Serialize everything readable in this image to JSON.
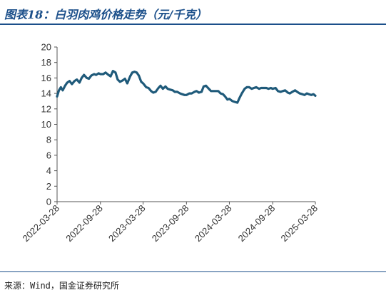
{
  "header": {
    "title": "图表18：白羽肉鸡价格走势（元/千克）"
  },
  "footer": {
    "source": "来源：Wind，国金证券研究所"
  },
  "chart_data": {
    "type": "line",
    "title": "图表18：白羽肉鸡价格走势（元/千克）",
    "xlabel": "",
    "ylabel": "",
    "ylim": [
      0,
      20
    ],
    "yticks": [
      "0",
      "2",
      "4",
      "6",
      "8",
      "10",
      "12",
      "14",
      "16",
      "18",
      "20"
    ],
    "xticks": [
      "2022-03-28",
      "2022-09-28",
      "2023-03-28",
      "2023-09-28",
      "2024-03-28",
      "2024-09-28",
      "2025-03-28"
    ],
    "xlim": [
      "2022-03-28",
      "2025-03-28"
    ],
    "grid": false,
    "legend": "none",
    "line_color": "#1f5a7a",
    "series": [
      {
        "x": [
          "2022-03-28",
          "2022-04-05",
          "2022-04-13",
          "2022-04-21",
          "2022-05-01",
          "2022-05-10",
          "2022-05-20",
          "2022-05-30",
          "2022-06-10",
          "2022-06-20",
          "2022-07-01",
          "2022-07-10",
          "2022-07-20",
          "2022-08-01",
          "2022-08-10",
          "2022-08-20",
          "2022-09-01",
          "2022-09-10",
          "2022-09-20",
          "2022-09-28",
          "2022-10-10",
          "2022-10-20",
          "2022-11-01",
          "2022-11-10",
          "2022-11-20",
          "2022-12-01",
          "2022-12-10",
          "2022-12-20",
          "2023-01-01",
          "2023-01-10",
          "2023-01-20",
          "2023-02-01",
          "2023-02-10",
          "2023-02-20",
          "2023-03-01",
          "2023-03-10",
          "2023-03-20",
          "2023-03-28",
          "2023-04-10",
          "2023-04-20",
          "2023-05-01",
          "2023-05-10",
          "2023-05-20",
          "2023-06-01",
          "2023-06-10",
          "2023-06-20",
          "2023-07-01",
          "2023-07-10",
          "2023-07-20",
          "2023-08-01",
          "2023-08-10",
          "2023-08-20",
          "2023-09-01",
          "2023-09-10",
          "2023-09-20",
          "2023-09-28",
          "2023-10-10",
          "2023-10-20",
          "2023-11-01",
          "2023-11-10",
          "2023-11-20",
          "2023-12-01",
          "2023-12-10",
          "2023-12-20",
          "2024-01-01",
          "2024-01-10",
          "2024-01-20",
          "2024-02-01",
          "2024-02-10",
          "2024-02-20",
          "2024-03-01",
          "2024-03-10",
          "2024-03-20",
          "2024-03-28",
          "2024-04-10",
          "2024-04-20",
          "2024-05-01",
          "2024-05-10",
          "2024-05-20",
          "2024-06-01",
          "2024-06-10",
          "2024-06-20",
          "2024-07-01",
          "2024-07-10",
          "2024-07-20",
          "2024-08-01",
          "2024-08-10",
          "2024-08-20",
          "2024-09-01",
          "2024-09-10",
          "2024-09-20",
          "2024-09-28",
          "2024-10-10",
          "2024-10-20",
          "2024-11-01",
          "2024-11-10",
          "2024-11-20",
          "2024-12-01",
          "2024-12-10",
          "2024-12-20",
          "2025-01-01",
          "2025-01-10",
          "2025-01-20",
          "2025-02-01",
          "2025-02-10",
          "2025-02-20",
          "2025-03-01",
          "2025-03-10",
          "2025-03-20",
          "2025-03-28"
        ],
        "values": [
          13.6,
          14.4,
          14.8,
          14.4,
          15.0,
          15.4,
          15.6,
          15.2,
          15.6,
          15.8,
          15.4,
          16.0,
          16.4,
          16.0,
          15.9,
          16.3,
          16.5,
          16.4,
          16.6,
          16.5,
          16.5,
          16.7,
          16.4,
          16.2,
          16.9,
          16.7,
          15.8,
          15.5,
          15.7,
          15.9,
          15.3,
          16.2,
          16.7,
          16.8,
          16.7,
          16.3,
          15.5,
          15.3,
          14.8,
          14.7,
          14.3,
          14.1,
          14.2,
          14.7,
          15.0,
          14.6,
          14.9,
          14.6,
          14.5,
          14.4,
          14.2,
          14.2,
          14.0,
          13.9,
          13.8,
          13.8,
          14.0,
          14.0,
          14.2,
          14.3,
          14.1,
          14.2,
          14.9,
          15.0,
          14.6,
          14.3,
          14.3,
          14.3,
          14.3,
          14.0,
          13.9,
          13.6,
          13.2,
          13.3,
          13.0,
          12.9,
          12.8,
          13.4,
          14.0,
          14.6,
          14.8,
          14.8,
          14.6,
          14.7,
          14.8,
          14.6,
          14.7,
          14.7,
          14.7,
          14.6,
          14.7,
          14.6,
          14.7,
          14.3,
          14.2,
          14.3,
          14.4,
          14.1,
          14.0,
          14.2,
          14.4,
          14.2,
          14.0,
          13.9,
          13.8,
          14.0,
          13.9,
          13.8,
          13.9,
          13.7
        ]
      }
    ]
  }
}
